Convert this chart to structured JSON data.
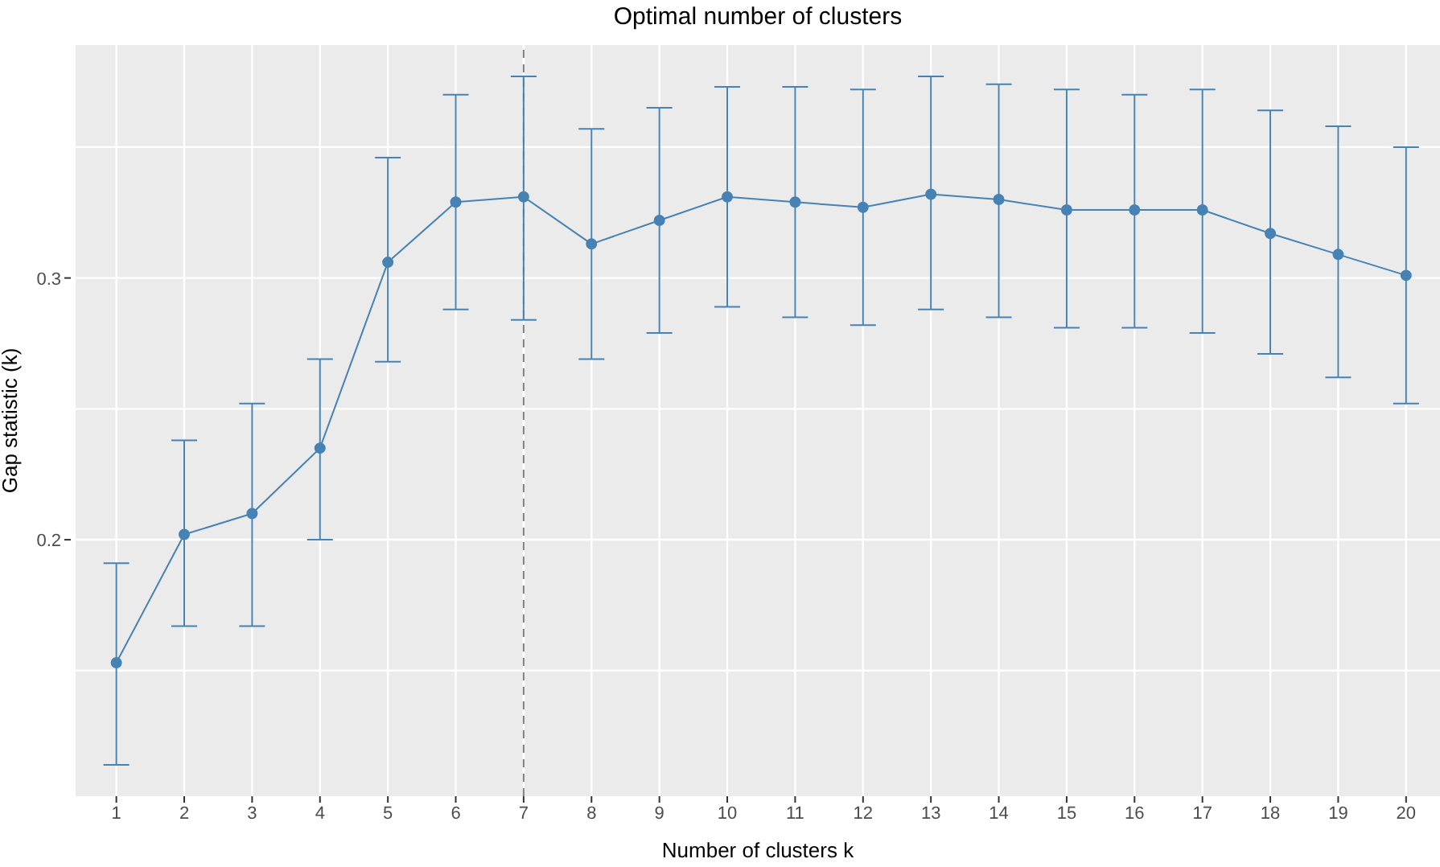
{
  "chart_data": {
    "type": "line",
    "title": "Optimal number of clusters",
    "xlabel": "Number of clusters k",
    "ylabel": "Gap statistic (k)",
    "x": [
      1,
      2,
      3,
      4,
      5,
      6,
      7,
      8,
      9,
      10,
      11,
      12,
      13,
      14,
      15,
      16,
      17,
      18,
      19,
      20
    ],
    "series": [
      {
        "color": "#4682b4",
        "values": [
          0.153,
          0.202,
          0.21,
          0.235,
          0.306,
          0.329,
          0.331,
          0.313,
          0.322,
          0.331,
          0.329,
          0.327,
          0.332,
          0.33,
          0.326,
          0.326,
          0.326,
          0.317,
          0.309,
          0.301
        ],
        "errors": [
          [
            0.114,
            0.191
          ],
          [
            0.167,
            0.238
          ],
          [
            0.167,
            0.252
          ],
          [
            0.2,
            0.269
          ],
          [
            0.268,
            0.346
          ],
          [
            0.288,
            0.37
          ],
          [
            0.284,
            0.377
          ],
          [
            0.269,
            0.357
          ],
          [
            0.279,
            0.365
          ],
          [
            0.289,
            0.373
          ],
          [
            0.285,
            0.373
          ],
          [
            0.282,
            0.372
          ],
          [
            0.288,
            0.377
          ],
          [
            0.285,
            0.374
          ],
          [
            0.281,
            0.372
          ],
          [
            0.281,
            0.37
          ],
          [
            0.279,
            0.372
          ],
          [
            0.271,
            0.364
          ],
          [
            0.262,
            0.358
          ],
          [
            0.252,
            0.35
          ]
        ]
      }
    ],
    "xlim": [
      0.4,
      20.5
    ],
    "xticks": [
      1,
      2,
      3,
      4,
      5,
      6,
      7,
      8,
      9,
      10,
      11,
      12,
      13,
      14,
      15,
      16,
      17,
      18,
      19,
      20
    ],
    "ylim": [
      0.102,
      0.389
    ],
    "yticks": [
      {
        "value": 0.15,
        "label": null
      },
      0.2,
      {
        "value": 0.25,
        "label": null
      },
      0.3,
      {
        "value": 0.35,
        "label": null
      }
    ],
    "ref_lines": [
      {
        "axis": "x",
        "value": 7,
        "color": "#808080",
        "line_style": "dashed"
      }
    ],
    "grid": true,
    "marker": "circle",
    "line_style": "solid",
    "legend": false
  }
}
